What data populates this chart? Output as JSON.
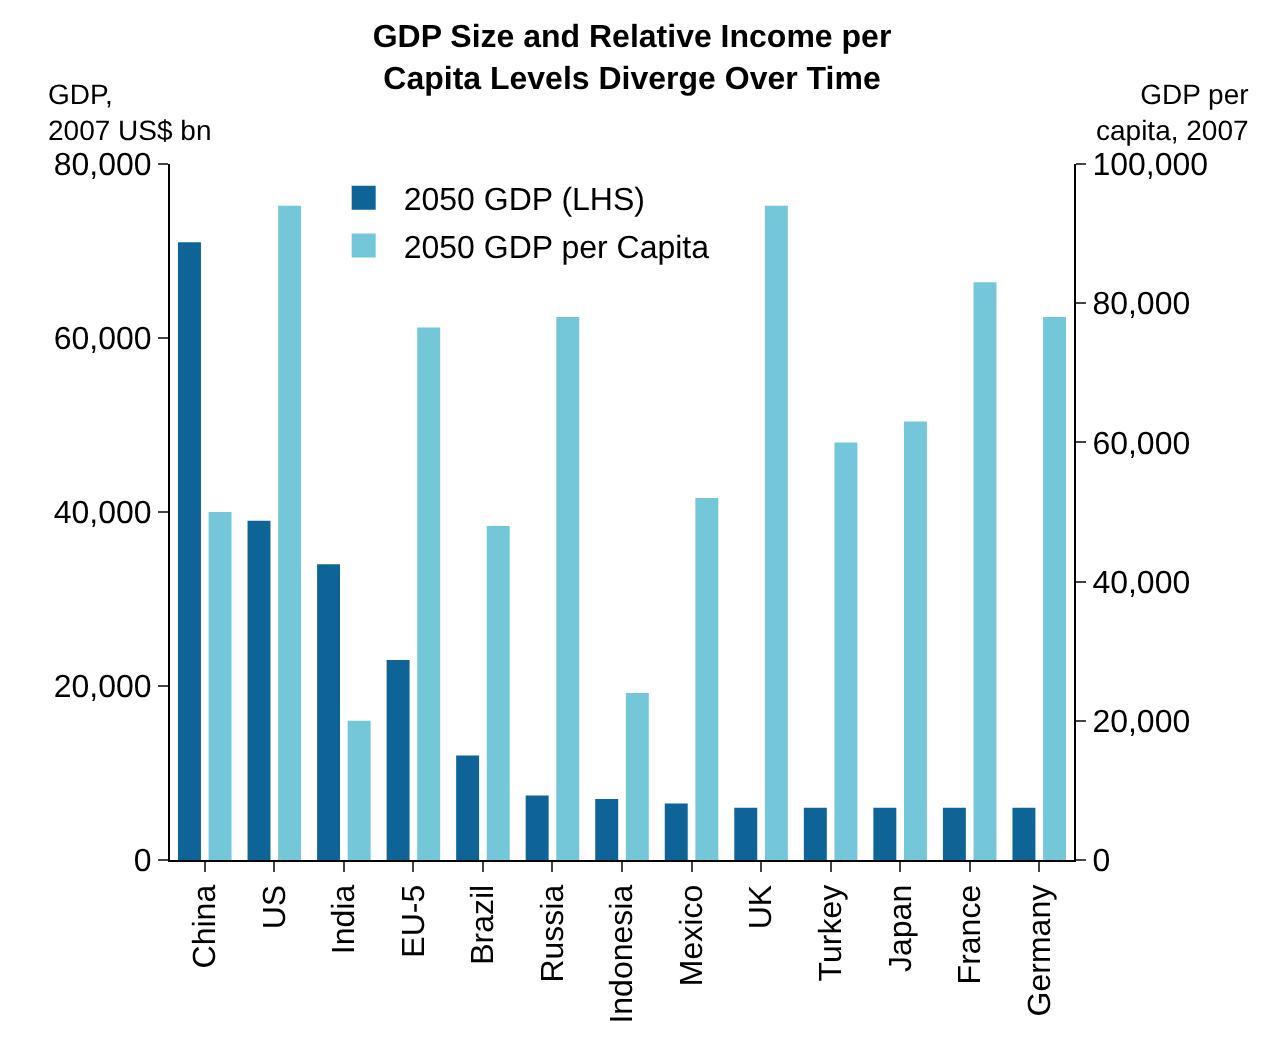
{
  "chart_data": {
    "type": "bar",
    "title": "GDP Size and Relative Income per\nCapita Levels Diverge Over Time",
    "ylabel": "GDP,\n2007 US$ bn",
    "y2label": "GDP per\ncapita, 2007",
    "categories": [
      "China",
      "US",
      "India",
      "EU-5",
      "Brazil",
      "Russia",
      "Indonesia",
      "Mexico",
      "UK",
      "Turkey",
      "Japan",
      "France",
      "Germany"
    ],
    "series": [
      {
        "name": "2050 GDP (LHS)",
        "color": "#0e6496",
        "values": [
          71000,
          39000,
          34000,
          23000,
          12000,
          7400,
          7000,
          6500,
          6000,
          6000,
          6000,
          6000,
          6000
        ]
      },
      {
        "name": "2050 GDP per Capita",
        "color": "#74c7d9",
        "axis": "y2",
        "values": [
          50000,
          94000,
          20000,
          76500,
          48000,
          78000,
          24000,
          52000,
          94000,
          60000,
          63000,
          83000,
          78000
        ]
      }
    ],
    "ylim": [
      0,
      80000
    ],
    "yticks": [
      {
        "value": 0,
        "label": "0"
      },
      {
        "value": 20000,
        "label": "20,000"
      },
      {
        "value": 40000,
        "label": "40,000"
      },
      {
        "value": 60000,
        "label": "60,000"
      },
      {
        "value": 80000,
        "label": "80,000"
      }
    ],
    "y2lim": [
      0,
      100000
    ],
    "y2ticks": [
      {
        "value": 0,
        "label": "0"
      },
      {
        "value": 20000,
        "label": "20,000"
      },
      {
        "value": 40000,
        "label": "40,000"
      },
      {
        "value": 60000,
        "label": "60,000"
      },
      {
        "value": 80000,
        "label": "80,000"
      },
      {
        "value": 100000,
        "label": "100,000"
      }
    ],
    "legend": "top left"
  }
}
